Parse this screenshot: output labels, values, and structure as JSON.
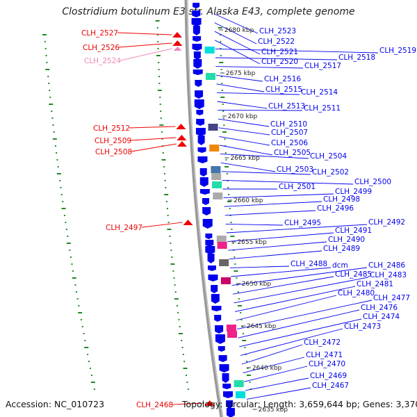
{
  "title": "Clostridium botulinum E3 str. Alaska E43, complete genome",
  "accession": "Accession: NC_010723",
  "topology": "Topology: circular; Length: 3,659,644 bp; Genes: 3,370",
  "colors": {
    "forward_gene": "#0000ee",
    "reverse_gene": "#ee0000",
    "rna_gene": "#ee88bb",
    "backbone": "#999999",
    "tick": "#228822",
    "cds_cyan": "#00dddd",
    "cds_teal": "#22ddaa",
    "cds_navy": "#444488",
    "cds_orange": "#ee8800",
    "cds_steel": "#4477aa",
    "cds_grey": "#aaaaaa",
    "cds_pink": "#ee2288",
    "cds_magenta": "#cc0066"
  },
  "scale_labels": [
    "2680 kbp",
    "2675 kbp",
    "2670 kbp",
    "2665 kbp",
    "2660 kbp",
    "2655 kbp",
    "2650 kbp",
    "2645 kbp",
    "2640 kbp",
    "2635 kbp"
  ],
  "forward_labels": [
    "CLH_2523",
    "CLH_2522",
    "CLH_2521",
    "CLH_2520",
    "CLH_2519",
    "CLH_2518",
    "CLH_2517",
    "CLH_2516",
    "CLH_2515",
    "CLH_2514",
    "CLH_2513",
    "CLH_2511",
    "CLH_2510",
    "CLH_2507",
    "CLH_2506",
    "CLH_2505",
    "CLH_2504",
    "CLH_2503",
    "CLH_2502",
    "CLH_2500",
    "CLH_2501",
    "CLH_2499",
    "CLH_2498",
    "CLH_2496",
    "CLH_2495",
    "CLH_2492",
    "CLH_2491",
    "CLH_2490",
    "CLH_2489",
    "CLH_2488",
    "dcm",
    "CLH_2486",
    "CLH_2485",
    "CLH_2483",
    "CLH_2481",
    "CLH_2480",
    "CLH_2477",
    "CLH_2476",
    "CLH_2474",
    "CLH_2473",
    "CLH_2472",
    "CLH_2471",
    "CLH_2470",
    "CLH_2469",
    "CLH_2467"
  ],
  "reverse_labels": [
    "CLH_2527",
    "CLH_2526",
    "CLH_2512",
    "CLH_2509",
    "CLH_2508",
    "CLH_2497",
    "CLH_2468"
  ],
  "rna_labels": [
    "CLH_2524"
  ]
}
